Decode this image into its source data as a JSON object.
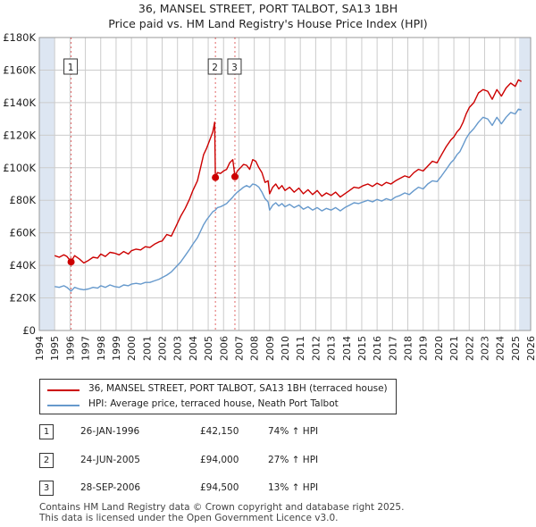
{
  "title_line1": "36, MANSEL STREET, PORT TALBOT, SA13 1BH",
  "title_line2": "Price paid vs. HM Land Registry's House Price Index (HPI)",
  "colors": {
    "property": "#cc0000",
    "hpi": "#6699cc",
    "shade": "#dde6f2",
    "grid": "#cccccc"
  },
  "chart_data": {
    "type": "line",
    "xlim": [
      1994,
      2026
    ],
    "ylim": [
      0,
      180000
    ],
    "y_ticks": [
      {
        "value": 0,
        "label": "£0"
      },
      {
        "value": 20000,
        "label": "£20K"
      },
      {
        "value": 40000,
        "label": "£40K"
      },
      {
        "value": 60000,
        "label": "£60K"
      },
      {
        "value": 80000,
        "label": "£80K"
      },
      {
        "value": 100000,
        "label": "£100K"
      },
      {
        "value": 120000,
        "label": "£120K"
      },
      {
        "value": 140000,
        "label": "£140K"
      },
      {
        "value": 160000,
        "label": "£160K"
      },
      {
        "value": 180000,
        "label": "£180K"
      }
    ],
    "x_ticks": [
      "1994",
      "1995",
      "1996",
      "1997",
      "1998",
      "1999",
      "2000",
      "2001",
      "2002",
      "2003",
      "2004",
      "2005",
      "2006",
      "2007",
      "2008",
      "2009",
      "2010",
      "2011",
      "2012",
      "2013",
      "2014",
      "2015",
      "2016",
      "2017",
      "2018",
      "2019",
      "2020",
      "2021",
      "2022",
      "2023",
      "2024",
      "2025",
      "2026"
    ],
    "shaded_ranges": [
      [
        1994,
        1995.0
      ],
      [
        2025.25,
        2026
      ]
    ],
    "series": [
      {
        "name": "36, MANSEL STREET, PORT TALBOT, SA13 1BH (terraced house)",
        "color": "#cc0000",
        "points": [
          [
            1995.0,
            46000
          ],
          [
            1995.3,
            45000
          ],
          [
            1995.6,
            46500
          ],
          [
            1995.8,
            45500
          ],
          [
            1996.07,
            42150
          ],
          [
            1996.3,
            46000
          ],
          [
            1996.6,
            44000
          ],
          [
            1996.9,
            41500
          ],
          [
            1997.2,
            43000
          ],
          [
            1997.5,
            45000
          ],
          [
            1997.8,
            44500
          ],
          [
            1998.0,
            47000
          ],
          [
            1998.3,
            45500
          ],
          [
            1998.6,
            48000
          ],
          [
            1998.9,
            47500
          ],
          [
            1999.2,
            46500
          ],
          [
            1999.5,
            48500
          ],
          [
            1999.8,
            47000
          ],
          [
            2000.0,
            49000
          ],
          [
            2000.3,
            50000
          ],
          [
            2000.6,
            49500
          ],
          [
            2000.9,
            51500
          ],
          [
            2001.2,
            51000
          ],
          [
            2001.5,
            53000
          ],
          [
            2001.8,
            54500
          ],
          [
            2002.0,
            55000
          ],
          [
            2002.3,
            59000
          ],
          [
            2002.6,
            58000
          ],
          [
            2002.9,
            64000
          ],
          [
            2003.2,
            70000
          ],
          [
            2003.5,
            75000
          ],
          [
            2003.8,
            81000
          ],
          [
            2004.0,
            86000
          ],
          [
            2004.3,
            92000
          ],
          [
            2004.5,
            100000
          ],
          [
            2004.7,
            108000
          ],
          [
            2004.9,
            112000
          ],
          [
            2005.1,
            117000
          ],
          [
            2005.3,
            122000
          ],
          [
            2005.42,
            128000
          ],
          [
            2005.47,
            94000
          ],
          [
            2005.6,
            97000
          ],
          [
            2005.8,
            96500
          ],
          [
            2006.0,
            98000
          ],
          [
            2006.2,
            99000
          ],
          [
            2006.4,
            103000
          ],
          [
            2006.6,
            105000
          ],
          [
            2006.74,
            94500
          ],
          [
            2006.9,
            98000
          ],
          [
            2007.1,
            100000
          ],
          [
            2007.3,
            102000
          ],
          [
            2007.5,
            101500
          ],
          [
            2007.7,
            99000
          ],
          [
            2007.9,
            105000
          ],
          [
            2008.1,
            104000
          ],
          [
            2008.3,
            100000
          ],
          [
            2008.5,
            97000
          ],
          [
            2008.7,
            91000
          ],
          [
            2008.9,
            92000
          ],
          [
            2009.0,
            84000
          ],
          [
            2009.2,
            88000
          ],
          [
            2009.4,
            90000
          ],
          [
            2009.6,
            87000
          ],
          [
            2009.8,
            89000
          ],
          [
            2010.0,
            86000
          ],
          [
            2010.3,
            88000
          ],
          [
            2010.6,
            85000
          ],
          [
            2010.9,
            87500
          ],
          [
            2011.2,
            84000
          ],
          [
            2011.5,
            86500
          ],
          [
            2011.8,
            83500
          ],
          [
            2012.1,
            86000
          ],
          [
            2012.4,
            82500
          ],
          [
            2012.7,
            84500
          ],
          [
            2013.0,
            83000
          ],
          [
            2013.3,
            85000
          ],
          [
            2013.6,
            82000
          ],
          [
            2013.9,
            84000
          ],
          [
            2014.2,
            86000
          ],
          [
            2014.5,
            88000
          ],
          [
            2014.8,
            87500
          ],
          [
            2015.1,
            89000
          ],
          [
            2015.4,
            90000
          ],
          [
            2015.7,
            88500
          ],
          [
            2016.0,
            90500
          ],
          [
            2016.3,
            89000
          ],
          [
            2016.6,
            91000
          ],
          [
            2016.9,
            90000
          ],
          [
            2017.2,
            92000
          ],
          [
            2017.5,
            93500
          ],
          [
            2017.8,
            95000
          ],
          [
            2018.1,
            94000
          ],
          [
            2018.4,
            97000
          ],
          [
            2018.7,
            99000
          ],
          [
            2019.0,
            98000
          ],
          [
            2019.3,
            101000
          ],
          [
            2019.6,
            104000
          ],
          [
            2019.9,
            103000
          ],
          [
            2020.2,
            108000
          ],
          [
            2020.5,
            113000
          ],
          [
            2020.8,
            117000
          ],
          [
            2021.0,
            119000
          ],
          [
            2021.2,
            122000
          ],
          [
            2021.4,
            124000
          ],
          [
            2021.6,
            128000
          ],
          [
            2021.8,
            133000
          ],
          [
            2022.0,
            137000
          ],
          [
            2022.3,
            140000
          ],
          [
            2022.6,
            146000
          ],
          [
            2022.9,
            148000
          ],
          [
            2023.2,
            147000
          ],
          [
            2023.5,
            142000
          ],
          [
            2023.8,
            148000
          ],
          [
            2024.1,
            144000
          ],
          [
            2024.4,
            149000
          ],
          [
            2024.7,
            152000
          ],
          [
            2025.0,
            150000
          ],
          [
            2025.2,
            154000
          ],
          [
            2025.4,
            153000
          ]
        ]
      },
      {
        "name": "HPI: Average price, terraced house, Neath Port Talbot",
        "color": "#6699cc",
        "points": [
          [
            1995.0,
            27000
          ],
          [
            1995.3,
            26500
          ],
          [
            1995.6,
            27500
          ],
          [
            1995.8,
            26500
          ],
          [
            1996.07,
            24200
          ],
          [
            1996.3,
            26500
          ],
          [
            1996.6,
            25500
          ],
          [
            1996.9,
            25000
          ],
          [
            1997.2,
            25500
          ],
          [
            1997.5,
            26500
          ],
          [
            1997.8,
            26000
          ],
          [
            1998.0,
            27500
          ],
          [
            1998.3,
            26500
          ],
          [
            1998.6,
            28000
          ],
          [
            1998.9,
            27000
          ],
          [
            1999.2,
            26500
          ],
          [
            1999.5,
            28000
          ],
          [
            1999.8,
            27500
          ],
          [
            2000.0,
            28500
          ],
          [
            2000.3,
            29000
          ],
          [
            2000.6,
            28500
          ],
          [
            2000.9,
            29500
          ],
          [
            2001.2,
            29500
          ],
          [
            2001.5,
            30500
          ],
          [
            2001.8,
            31500
          ],
          [
            2002.0,
            32500
          ],
          [
            2002.3,
            34000
          ],
          [
            2002.6,
            36000
          ],
          [
            2002.9,
            39000
          ],
          [
            2003.2,
            42000
          ],
          [
            2003.5,
            46000
          ],
          [
            2003.8,
            50000
          ],
          [
            2004.0,
            53000
          ],
          [
            2004.3,
            57000
          ],
          [
            2004.5,
            61000
          ],
          [
            2004.7,
            65000
          ],
          [
            2004.9,
            68000
          ],
          [
            2005.1,
            70500
          ],
          [
            2005.3,
            73000
          ],
          [
            2005.47,
            74000
          ],
          [
            2005.6,
            75500
          ],
          [
            2005.8,
            76000
          ],
          [
            2006.0,
            77000
          ],
          [
            2006.2,
            78000
          ],
          [
            2006.4,
            80000
          ],
          [
            2006.6,
            82000
          ],
          [
            2006.74,
            83600
          ],
          [
            2006.9,
            85000
          ],
          [
            2007.1,
            86500
          ],
          [
            2007.3,
            88000
          ],
          [
            2007.5,
            89000
          ],
          [
            2007.7,
            88000
          ],
          [
            2007.9,
            90000
          ],
          [
            2008.1,
            89500
          ],
          [
            2008.3,
            88000
          ],
          [
            2008.5,
            85000
          ],
          [
            2008.7,
            81000
          ],
          [
            2008.9,
            79000
          ],
          [
            2009.0,
            74000
          ],
          [
            2009.2,
            77000
          ],
          [
            2009.4,
            78500
          ],
          [
            2009.6,
            76500
          ],
          [
            2009.8,
            78000
          ],
          [
            2010.0,
            76000
          ],
          [
            2010.3,
            77500
          ],
          [
            2010.6,
            75500
          ],
          [
            2010.9,
            77000
          ],
          [
            2011.2,
            74500
          ],
          [
            2011.5,
            76000
          ],
          [
            2011.8,
            74000
          ],
          [
            2012.1,
            75500
          ],
          [
            2012.4,
            73500
          ],
          [
            2012.7,
            75000
          ],
          [
            2013.0,
            74000
          ],
          [
            2013.3,
            75500
          ],
          [
            2013.6,
            73500
          ],
          [
            2013.9,
            75500
          ],
          [
            2014.2,
            77000
          ],
          [
            2014.5,
            78500
          ],
          [
            2014.8,
            78000
          ],
          [
            2015.1,
            79000
          ],
          [
            2015.4,
            80000
          ],
          [
            2015.7,
            79000
          ],
          [
            2016.0,
            80500
          ],
          [
            2016.3,
            79500
          ],
          [
            2016.6,
            81000
          ],
          [
            2016.9,
            80000
          ],
          [
            2017.2,
            82000
          ],
          [
            2017.5,
            83000
          ],
          [
            2017.8,
            84500
          ],
          [
            2018.1,
            83500
          ],
          [
            2018.4,
            86000
          ],
          [
            2018.7,
            88000
          ],
          [
            2019.0,
            87000
          ],
          [
            2019.3,
            90000
          ],
          [
            2019.6,
            92000
          ],
          [
            2019.9,
            91500
          ],
          [
            2020.2,
            95000
          ],
          [
            2020.5,
            99000
          ],
          [
            2020.8,
            103000
          ],
          [
            2021.0,
            105000
          ],
          [
            2021.2,
            108000
          ],
          [
            2021.4,
            110000
          ],
          [
            2021.6,
            114000
          ],
          [
            2021.8,
            118000
          ],
          [
            2022.0,
            121000
          ],
          [
            2022.3,
            124000
          ],
          [
            2022.6,
            128000
          ],
          [
            2022.9,
            131000
          ],
          [
            2023.2,
            130000
          ],
          [
            2023.5,
            126000
          ],
          [
            2023.8,
            131000
          ],
          [
            2024.1,
            127000
          ],
          [
            2024.4,
            131000
          ],
          [
            2024.7,
            134000
          ],
          [
            2025.0,
            133000
          ],
          [
            2025.2,
            136000
          ],
          [
            2025.4,
            135500
          ]
        ]
      }
    ],
    "markers": [
      {
        "label": "1",
        "x": 1996.07,
        "y": 42150
      },
      {
        "label": "2",
        "x": 2005.47,
        "y": 94000
      },
      {
        "label": "3",
        "x": 2006.74,
        "y": 94500
      }
    ]
  },
  "legend": {
    "property_label": "36, MANSEL STREET, PORT TALBOT, SA13 1BH (terraced house)",
    "hpi_label": "HPI: Average price, terraced house, Neath Port Talbot"
  },
  "transactions": [
    {
      "num": "1",
      "date": "26-JAN-1996",
      "price": "£42,150",
      "hpi": "74% ↑ HPI"
    },
    {
      "num": "2",
      "date": "24-JUN-2005",
      "price": "£94,000",
      "hpi": "27% ↑ HPI"
    },
    {
      "num": "3",
      "date": "28-SEP-2006",
      "price": "£94,500",
      "hpi": "13% ↑ HPI"
    }
  ],
  "footer_line1": "Contains HM Land Registry data © Crown copyright and database right 2025.",
  "footer_line2": "This data is licensed under the Open Government Licence v3.0."
}
